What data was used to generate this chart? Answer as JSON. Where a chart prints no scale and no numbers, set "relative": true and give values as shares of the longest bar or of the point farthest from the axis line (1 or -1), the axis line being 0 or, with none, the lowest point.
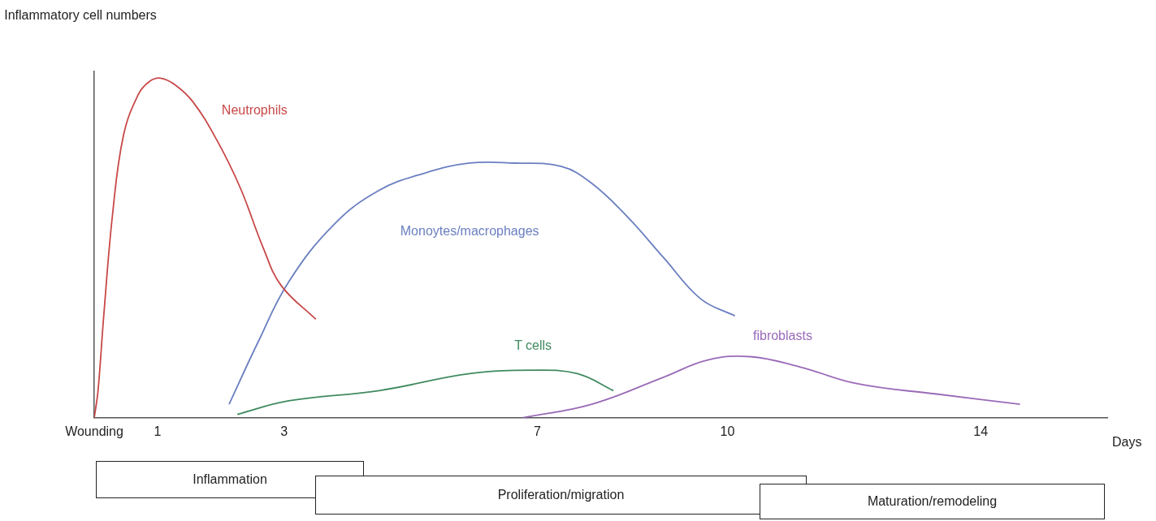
{
  "chart_data": {
    "type": "line",
    "relative": true,
    "xlabel": "Days",
    "ylabel": "Inflammatory cell numbers",
    "xlim": [
      0,
      16
    ],
    "xticks": [
      {
        "value": 0,
        "label": "Wounding"
      },
      1,
      3,
      7,
      10,
      14
    ],
    "series": [
      {
        "name": "Neutrophils",
        "color": "#c84848",
        "x": [
          0,
          0.06,
          0.15,
          0.29,
          0.46,
          0.69,
          0.87,
          1.05,
          1.28,
          1.56,
          1.93,
          2.3,
          2.67,
          2.95,
          3.5
        ],
        "values": [
          0,
          0.08,
          0.3,
          0.6,
          0.83,
          0.95,
          0.99,
          1,
          0.98,
          0.93,
          0.82,
          0.68,
          0.5,
          0.39,
          0.29
        ]
      },
      {
        "name": "Monoytes/macrophages",
        "color": "#6a7fc0",
        "x": [
          2.13,
          2.58,
          3.07,
          3.79,
          4.5,
          5.21,
          5.93,
          6.64,
          7.38,
          7.86,
          8.43,
          9,
          9.58,
          10.12
        ],
        "values": [
          0.04,
          0.22,
          0.4,
          0.57,
          0.67,
          0.72,
          0.75,
          0.75,
          0.74,
          0.69,
          0.59,
          0.47,
          0.35,
          0.3
        ]
      },
      {
        "name": "T cells",
        "color": "#3f8a5f",
        "x": [
          2.26,
          3.07,
          4.5,
          5.93,
          6.93,
          7.63,
          8.2
        ],
        "values": [
          0.01,
          0.05,
          0.08,
          0.13,
          0.14,
          0.13,
          0.08
        ]
      },
      {
        "name": "fibroblasts",
        "color": "#9a6ab8",
        "x": [
          6.76,
          7.86,
          9,
          9.69,
          10.36,
          11.14,
          12.06,
          13.3,
          14.62
        ],
        "values": [
          0,
          0.04,
          0.12,
          0.17,
          0.18,
          0.15,
          0.1,
          0.07,
          0.04
        ]
      }
    ],
    "annotations": [
      "Inflammation",
      "Proliferation/migration",
      "Maturation/remodeling"
    ],
    "grid": false,
    "marker": "none",
    "line_style": "solid"
  }
}
